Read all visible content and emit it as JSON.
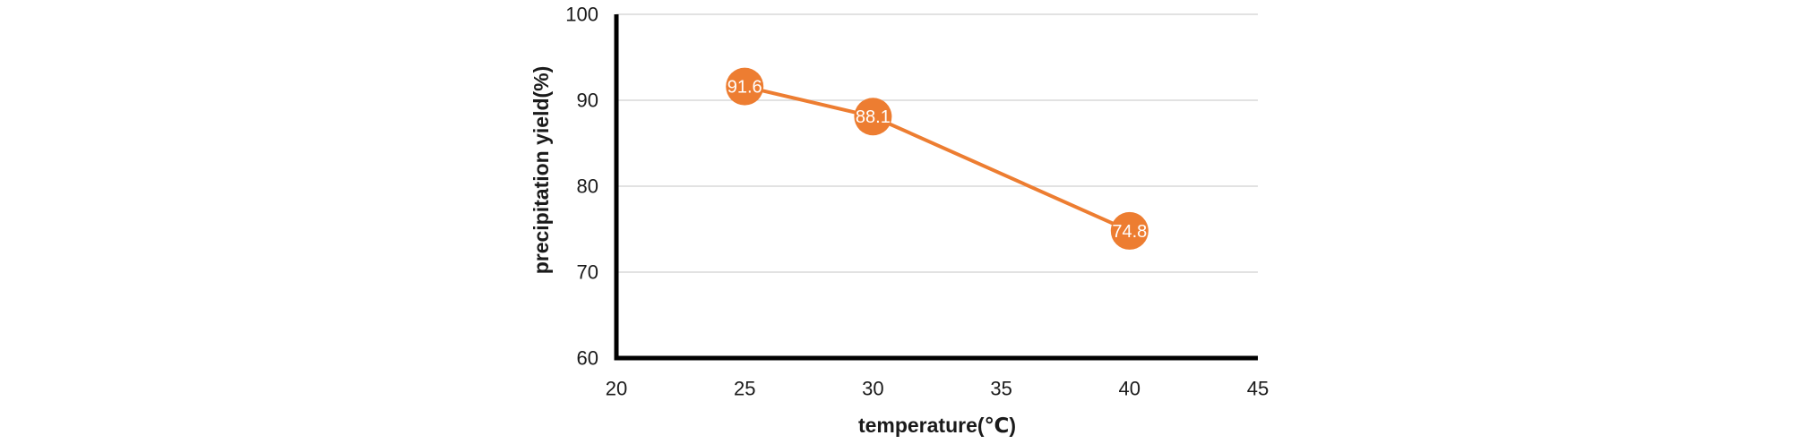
{
  "chart_data": {
    "type": "line",
    "x": [
      25,
      30,
      40
    ],
    "series": [
      {
        "name": "precipitation yield",
        "values": [
          91.6,
          88.1,
          74.8
        ]
      }
    ],
    "data_labels": [
      "91.6",
      "88.1",
      "74.8"
    ],
    "title": "",
    "xlabel": "temperature(℃)",
    "ylabel": "precipitation yield(%)",
    "xlim": [
      20,
      45
    ],
    "ylim": [
      60,
      100
    ],
    "x_ticks": [
      20,
      25,
      30,
      35,
      40,
      45
    ],
    "y_ticks": [
      60,
      70,
      80,
      90,
      100
    ],
    "grid": "horizontal",
    "legend": "none",
    "marker": {
      "shape": "circle",
      "label_inside": true
    },
    "colors": {
      "series": "#ED7D31",
      "marker_fill": "#ED7D31",
      "marker_label_text": "#FFFFFF",
      "gridline": "#D9D9D9",
      "axis_line": "#000000",
      "text": "#1A1A1A",
      "background": "#FFFFFF"
    }
  }
}
